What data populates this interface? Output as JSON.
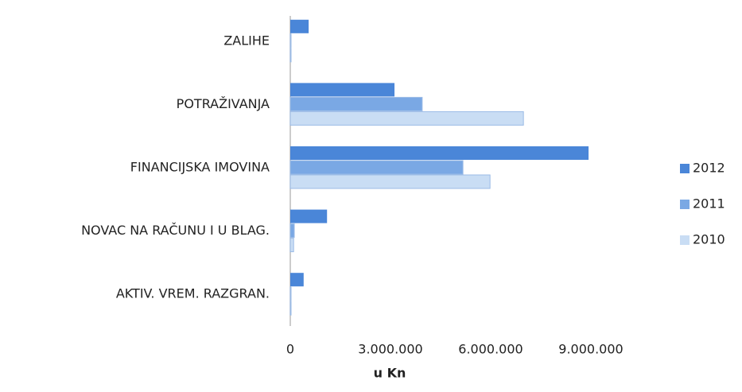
{
  "chart_data": {
    "type": "hbar",
    "categories": [
      "ZALIHE",
      "POTRAŽIVANJA",
      "FINANCIJSKA IMOVINA",
      "NOVAC NA RAČUNU I U BLAG.",
      "AKTIV. VREM. RAZGRAN."
    ],
    "series": [
      {
        "name": "2012",
        "color": "#4a86d8",
        "values": [
          550000,
          3120000,
          8930000,
          1100000,
          400000
        ]
      },
      {
        "name": "2011",
        "color": "#7aa8e4",
        "values": [
          20000,
          3950000,
          5170000,
          120000,
          20000
        ]
      },
      {
        "name": "2010",
        "color": "#c9ddf4",
        "values": [
          20000,
          6980000,
          5980000,
          100000,
          10000
        ]
      }
    ],
    "xlim": [
      0,
      9000000
    ],
    "xticks": [
      0,
      {
        "value": 3000000,
        "label": "3.000.000"
      },
      {
        "value": 6000000,
        "label": "6.000.000"
      },
      {
        "value": 9000000,
        "label": "9.000.000"
      }
    ],
    "xlabel": "u Kn",
    "legend": "right"
  }
}
